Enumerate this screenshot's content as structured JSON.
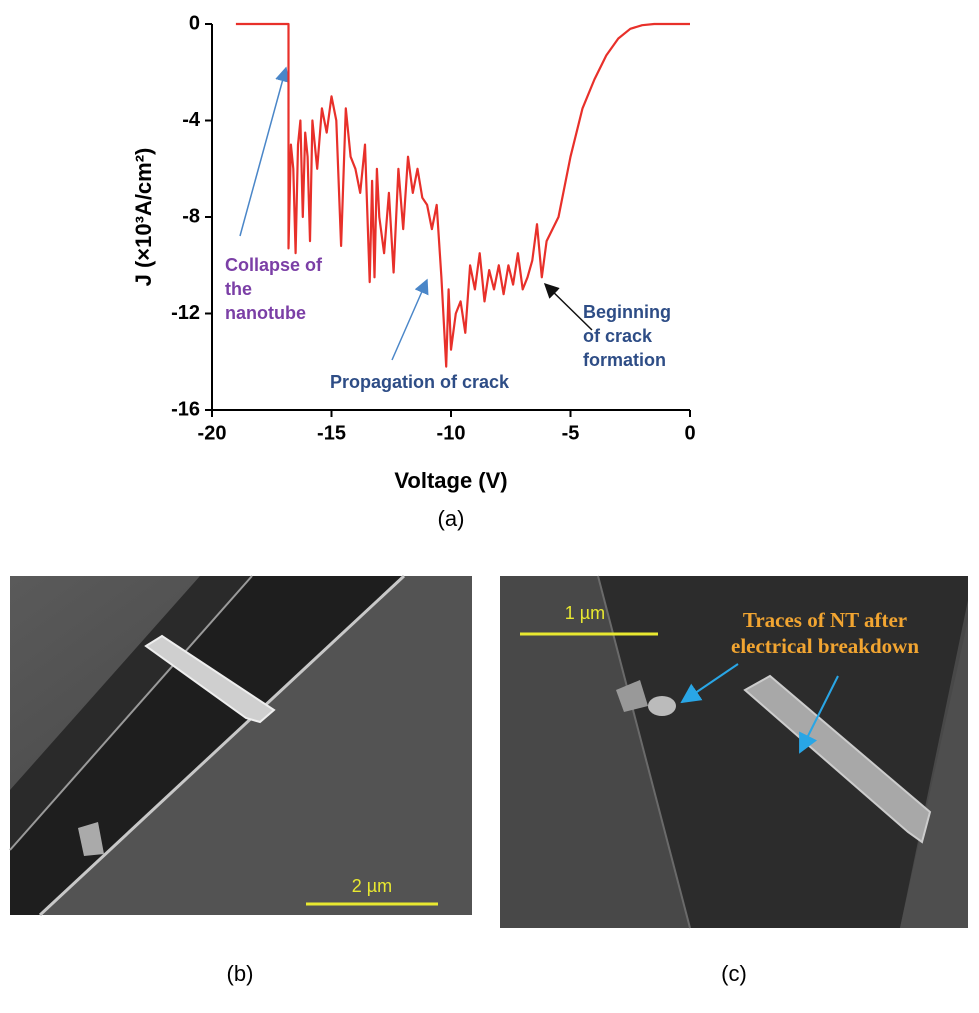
{
  "chart_data": {
    "type": "line",
    "xlabel": "Voltage (V)",
    "ylabel": "J (×10³A/cm²)",
    "xlim": [
      -20,
      0
    ],
    "ylim": [
      -16,
      0
    ],
    "xticks": [
      -20,
      -15,
      -10,
      -5,
      0
    ],
    "yticks": [
      0,
      -4,
      -8,
      -12,
      -16
    ],
    "x": [
      -19,
      -16.8,
      -16.8,
      -16.7,
      -16.6,
      -16.5,
      -16.4,
      -16.3,
      -16.2,
      -16.1,
      -16.0,
      -15.9,
      -15.8,
      -15.6,
      -15.4,
      -15.2,
      -15.0,
      -14.8,
      -14.6,
      -14.4,
      -14.2,
      -14.0,
      -13.8,
      -13.6,
      -13.4,
      -13.3,
      -13.2,
      -13.1,
      -13.0,
      -12.8,
      -12.6,
      -12.4,
      -12.2,
      -12.0,
      -11.8,
      -11.6,
      -11.4,
      -11.2,
      -11.0,
      -10.8,
      -10.6,
      -10.4,
      -10.2,
      -10.1,
      -10.0,
      -9.8,
      -9.6,
      -9.4,
      -9.2,
      -9.0,
      -8.8,
      -8.6,
      -8.4,
      -8.2,
      -8.0,
      -7.8,
      -7.6,
      -7.4,
      -7.2,
      -7.0,
      -6.8,
      -6.6,
      -6.4,
      -6.2,
      -6.0,
      -5.5,
      -5.0,
      -4.5,
      -4.0,
      -3.5,
      -3.0,
      -2.5,
      -2.0,
      -1.5,
      -1.0,
      -0.5,
      0
    ],
    "series": [
      {
        "color": "#e8302a",
        "values": [
          0,
          0,
          -9.3,
          -5,
          -6,
          -9.5,
          -5,
          -4,
          -8,
          -4.5,
          -5.5,
          -9,
          -4,
          -6,
          -3.5,
          -4.5,
          -3,
          -4,
          -9.2,
          -3.5,
          -5.5,
          -6,
          -7,
          -5,
          -10.7,
          -6.5,
          -10.5,
          -6,
          -8,
          -9.5,
          -7,
          -10.3,
          -6,
          -8.5,
          -5.5,
          -7,
          -6,
          -7.2,
          -7.5,
          -8.5,
          -7.5,
          -10.5,
          -14.2,
          -11,
          -13.5,
          -12,
          -11.5,
          -12.8,
          -10,
          -11,
          -9.5,
          -11.5,
          -10.2,
          -11,
          -10,
          -11.2,
          -10,
          -10.8,
          -9.5,
          -11,
          -10.5,
          -9.8,
          -8.3,
          -10.5,
          -9,
          -8,
          -5.5,
          -3.5,
          -2.3,
          -1.3,
          -0.6,
          -0.2,
          -0.05,
          0,
          0,
          0,
          0
        ]
      }
    ],
    "annotations": [
      {
        "lines": [
          "Collapse of",
          "the",
          "nanotube"
        ],
        "color": "#7b3fa6"
      },
      {
        "lines": [
          "Propagation of crack"
        ],
        "color": "#2e4d86"
      },
      {
        "lines": [
          "Beginning",
          "of crack",
          "formation"
        ],
        "color": "#2e4d86"
      }
    ]
  },
  "captions": [
    "(a)",
    "(b)",
    "(c)"
  ],
  "images": [
    {
      "scale_bar": "2 µm"
    },
    {
      "scale_bar": "1 µm",
      "annotation": [
        "Traces of NT after",
        "electrical breakdown"
      ]
    }
  ]
}
